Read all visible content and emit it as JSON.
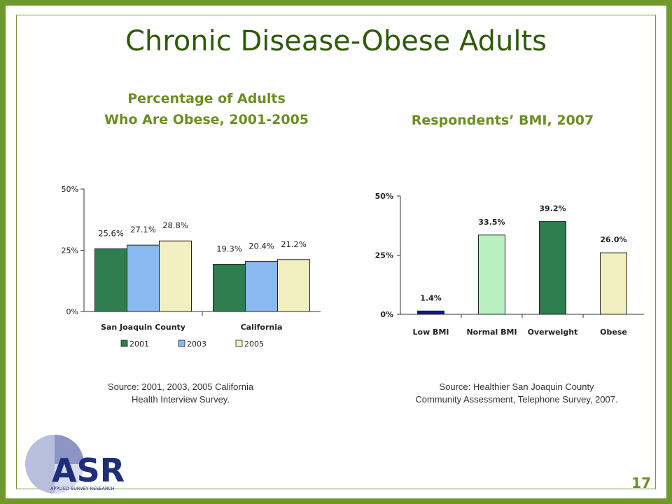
{
  "slide": {
    "title": "Chronic Disease-Obese Adults",
    "page_number": "17",
    "logo_text": "ASR",
    "logo_subtext": "APPLIED SURVEY RESEARCH"
  },
  "left": {
    "heading_line1": "Percentage of Adults",
    "heading_line2": "Who Are Obese, 2001-2005",
    "source_line1": "Source: 2001, 2003, 2005 California",
    "source_line2": "Health Interview Survey."
  },
  "right": {
    "heading": "Respondents’ BMI, 2007",
    "source_line1": "Source: Healthier San Joaquin County",
    "source_line2": "Community Assessment, Telephone Survey, 2007."
  },
  "chart_data": [
    {
      "type": "bar",
      "categories": [
        "San Joaquin County",
        "California"
      ],
      "series": [
        {
          "name": "2001",
          "values": [
            25.6,
            19.3
          ],
          "color": "#2e7d4f"
        },
        {
          "name": "2003",
          "values": [
            27.1,
            20.4
          ],
          "color": "#8ab8f0"
        },
        {
          "name": "2005",
          "values": [
            28.8,
            21.2
          ],
          "color": "#f2f0c0"
        }
      ],
      "data_labels": [
        [
          "25.6%",
          "19.3%"
        ],
        [
          "27.1%",
          "20.4%"
        ],
        [
          "28.8%",
          "21.2%"
        ]
      ],
      "yticks": [
        "0%",
        "25%",
        "50%"
      ],
      "ylim": [
        0,
        50
      ],
      "legend": "bottom",
      "grid": false
    },
    {
      "type": "bar",
      "categories": [
        "Low BMI",
        "Normal BMI",
        "Overweight",
        "Obese"
      ],
      "values": [
        1.4,
        33.5,
        39.2,
        26.0
      ],
      "data_labels": [
        "1.4%",
        "33.5%",
        "39.2%",
        "26.0%"
      ],
      "colors": [
        "#0a1a8c",
        "#b8f0c0",
        "#2e7d4f",
        "#f2f0c0"
      ],
      "yticks": [
        "0%",
        "25%",
        "50%"
      ],
      "ylim": [
        0,
        50
      ],
      "grid": false
    }
  ]
}
